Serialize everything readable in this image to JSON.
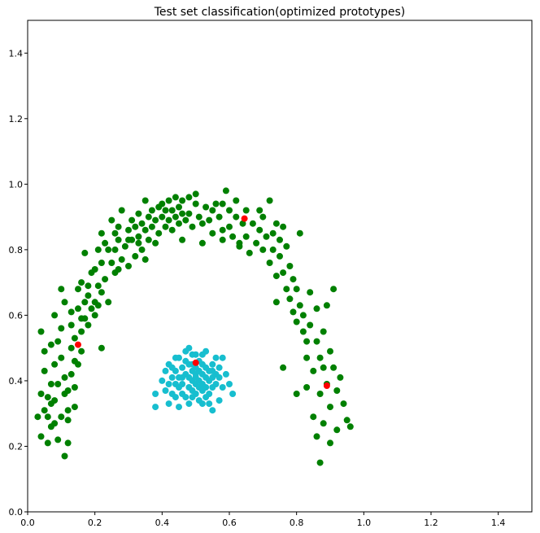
{
  "chart_data": {
    "type": "scatter",
    "title": "Test set classification(optimized prototypes)",
    "xlabel": "",
    "ylabel": "",
    "xlim": [
      0,
      1.5
    ],
    "ylim": [
      0,
      1.5
    ],
    "x_ticks": [
      "0.0",
      "0.2",
      "0.4",
      "0.6",
      "0.8",
      "1.0",
      "1.2",
      "1.4"
    ],
    "y_ticks": [
      "0.0",
      "0.2",
      "0.4",
      "0.6",
      "0.8",
      "1.0",
      "1.2",
      "1.4"
    ],
    "grid": false,
    "colors": {
      "green": "#008000",
      "cyan": "#17becf",
      "red": "#ff0000"
    },
    "series": [
      {
        "color": "#008000",
        "points": [
          [
            0.03,
            0.29
          ],
          [
            0.04,
            0.55
          ],
          [
            0.04,
            0.36
          ],
          [
            0.04,
            0.23
          ],
          [
            0.05,
            0.31
          ],
          [
            0.05,
            0.49
          ],
          [
            0.05,
            0.43
          ],
          [
            0.06,
            0.21
          ],
          [
            0.06,
            0.29
          ],
          [
            0.06,
            0.35
          ],
          [
            0.07,
            0.26
          ],
          [
            0.07,
            0.33
          ],
          [
            0.07,
            0.39
          ],
          [
            0.07,
            0.51
          ],
          [
            0.08,
            0.6
          ],
          [
            0.08,
            0.45
          ],
          [
            0.08,
            0.34
          ],
          [
            0.08,
            0.27
          ],
          [
            0.09,
            0.22
          ],
          [
            0.09,
            0.52
          ],
          [
            0.1,
            0.56
          ],
          [
            0.1,
            0.47
          ],
          [
            0.1,
            0.29
          ],
          [
            0.11,
            0.64
          ],
          [
            0.11,
            0.41
          ],
          [
            0.11,
            0.36
          ],
          [
            0.11,
            0.17
          ],
          [
            0.12,
            0.37
          ],
          [
            0.12,
            0.28
          ],
          [
            0.12,
            0.21
          ],
          [
            0.13,
            0.61
          ],
          [
            0.13,
            0.57
          ],
          [
            0.13,
            0.5
          ],
          [
            0.13,
            0.42
          ],
          [
            0.14,
            0.53
          ],
          [
            0.14,
            0.38
          ],
          [
            0.14,
            0.32
          ],
          [
            0.15,
            0.68
          ],
          [
            0.15,
            0.62
          ],
          [
            0.15,
            0.45
          ],
          [
            0.16,
            0.7
          ],
          [
            0.16,
            0.59
          ],
          [
            0.16,
            0.55
          ],
          [
            0.16,
            0.49
          ],
          [
            0.17,
            0.64
          ],
          [
            0.17,
            0.79
          ],
          [
            0.18,
            0.69
          ],
          [
            0.18,
            0.66
          ],
          [
            0.19,
            0.62
          ],
          [
            0.19,
            0.73
          ],
          [
            0.2,
            0.74
          ],
          [
            0.2,
            0.64
          ],
          [
            0.21,
            0.8
          ],
          [
            0.21,
            0.69
          ],
          [
            0.21,
            0.63
          ],
          [
            0.22,
            0.5
          ],
          [
            0.22,
            0.76
          ],
          [
            0.22,
            0.85
          ],
          [
            0.23,
            0.71
          ],
          [
            0.23,
            0.82
          ],
          [
            0.24,
            0.64
          ],
          [
            0.25,
            0.76
          ],
          [
            0.25,
            0.89
          ],
          [
            0.26,
            0.8
          ],
          [
            0.26,
            0.73
          ],
          [
            0.27,
            0.87
          ],
          [
            0.27,
            0.83
          ],
          [
            0.28,
            0.77
          ],
          [
            0.28,
            0.92
          ],
          [
            0.29,
            0.81
          ],
          [
            0.3,
            0.86
          ],
          [
            0.3,
            0.75
          ],
          [
            0.31,
            0.89
          ],
          [
            0.31,
            0.83
          ],
          [
            0.32,
            0.87
          ],
          [
            0.32,
            0.78
          ],
          [
            0.33,
            0.91
          ],
          [
            0.33,
            0.84
          ],
          [
            0.34,
            0.88
          ],
          [
            0.34,
            0.8
          ],
          [
            0.35,
            0.95
          ],
          [
            0.35,
            0.86
          ],
          [
            0.36,
            0.9
          ],
          [
            0.36,
            0.83
          ],
          [
            0.37,
            0.92
          ],
          [
            0.37,
            0.87
          ],
          [
            0.38,
            0.89
          ],
          [
            0.38,
            0.82
          ],
          [
            0.39,
            0.93
          ],
          [
            0.39,
            0.85
          ],
          [
            0.4,
            0.9
          ],
          [
            0.4,
            0.94
          ],
          [
            0.41,
            0.87
          ],
          [
            0.41,
            0.92
          ],
          [
            0.42,
            0.95
          ],
          [
            0.42,
            0.89
          ],
          [
            0.43,
            0.92
          ],
          [
            0.43,
            0.86
          ],
          [
            0.44,
            0.96
          ],
          [
            0.44,
            0.9
          ],
          [
            0.45,
            0.93
          ],
          [
            0.45,
            0.88
          ],
          [
            0.46,
            0.91
          ],
          [
            0.46,
            0.95
          ],
          [
            0.47,
            0.89
          ],
          [
            0.48,
            0.96
          ],
          [
            0.48,
            0.91
          ],
          [
            0.49,
            0.87
          ],
          [
            0.5,
            0.94
          ],
          [
            0.5,
            0.97
          ],
          [
            0.51,
            0.9
          ],
          [
            0.52,
            0.88
          ],
          [
            0.52,
            0.82
          ],
          [
            0.53,
            0.93
          ],
          [
            0.54,
            0.89
          ],
          [
            0.55,
            0.92
          ],
          [
            0.55,
            0.85
          ],
          [
            0.56,
            0.94
          ],
          [
            0.57,
            0.9
          ],
          [
            0.58,
            0.83
          ],
          [
            0.58,
            0.94
          ],
          [
            0.59,
            0.98
          ],
          [
            0.6,
            0.92
          ],
          [
            0.6,
            0.87
          ],
          [
            0.61,
            0.84
          ],
          [
            0.62,
            0.95
          ],
          [
            0.62,
            0.9
          ],
          [
            0.63,
            0.81
          ],
          [
            0.64,
            0.88
          ],
          [
            0.65,
            0.92
          ],
          [
            0.65,
            0.84
          ],
          [
            0.66,
            0.79
          ],
          [
            0.67,
            0.88
          ],
          [
            0.68,
            0.82
          ],
          [
            0.69,
            0.92
          ],
          [
            0.69,
            0.86
          ],
          [
            0.7,
            0.8
          ],
          [
            0.7,
            0.9
          ],
          [
            0.71,
            0.84
          ],
          [
            0.72,
            0.76
          ],
          [
            0.72,
            0.95
          ],
          [
            0.73,
            0.85
          ],
          [
            0.73,
            0.8
          ],
          [
            0.74,
            0.88
          ],
          [
            0.74,
            0.72
          ],
          [
            0.75,
            0.83
          ],
          [
            0.75,
            0.78
          ],
          [
            0.76,
            0.87
          ],
          [
            0.76,
            0.73
          ],
          [
            0.77,
            0.81
          ],
          [
            0.77,
            0.68
          ],
          [
            0.78,
            0.75
          ],
          [
            0.78,
            0.65
          ],
          [
            0.79,
            0.71
          ],
          [
            0.79,
            0.61
          ],
          [
            0.8,
            0.68
          ],
          [
            0.8,
            0.58
          ],
          [
            0.81,
            0.85
          ],
          [
            0.81,
            0.63
          ],
          [
            0.82,
            0.55
          ],
          [
            0.82,
            0.6
          ],
          [
            0.83,
            0.52
          ],
          [
            0.83,
            0.47
          ],
          [
            0.83,
            0.38
          ],
          [
            0.84,
            0.67
          ],
          [
            0.84,
            0.57
          ],
          [
            0.85,
            0.43
          ],
          [
            0.85,
            0.29
          ],
          [
            0.86,
            0.62
          ],
          [
            0.86,
            0.52
          ],
          [
            0.86,
            0.23
          ],
          [
            0.87,
            0.47
          ],
          [
            0.87,
            0.36
          ],
          [
            0.87,
            0.15
          ],
          [
            0.88,
            0.55
          ],
          [
            0.88,
            0.44
          ],
          [
            0.88,
            0.27
          ],
          [
            0.89,
            0.63
          ],
          [
            0.89,
            0.39
          ],
          [
            0.9,
            0.49
          ],
          [
            0.9,
            0.21
          ],
          [
            0.9,
            0.32
          ],
          [
            0.91,
            0.44
          ],
          [
            0.91,
            0.68
          ],
          [
            0.92,
            0.37
          ],
          [
            0.92,
            0.25
          ],
          [
            0.93,
            0.41
          ],
          [
            0.94,
            0.33
          ],
          [
            0.95,
            0.28
          ],
          [
            0.96,
            0.26
          ],
          [
            0.74,
            0.64
          ],
          [
            0.76,
            0.44
          ],
          [
            0.8,
            0.36
          ],
          [
            0.63,
            0.82
          ],
          [
            0.58,
            0.86
          ],
          [
            0.46,
            0.83
          ],
          [
            0.35,
            0.77
          ],
          [
            0.3,
            0.83
          ],
          [
            0.26,
            0.85
          ],
          [
            0.24,
            0.8
          ],
          [
            0.2,
            0.6
          ],
          [
            0.17,
            0.59
          ],
          [
            0.12,
            0.31
          ],
          [
            0.1,
            0.68
          ],
          [
            0.09,
            0.39
          ],
          [
            0.14,
            0.46
          ],
          [
            0.18,
            0.57
          ],
          [
            0.22,
            0.67
          ],
          [
            0.27,
            0.74
          ],
          [
            0.33,
            0.82
          ]
        ]
      },
      {
        "color": "#17becf",
        "points": [
          [
            0.38,
            0.32
          ],
          [
            0.38,
            0.36
          ],
          [
            0.4,
            0.4
          ],
          [
            0.41,
            0.37
          ],
          [
            0.41,
            0.43
          ],
          [
            0.42,
            0.33
          ],
          [
            0.42,
            0.39
          ],
          [
            0.42,
            0.45
          ],
          [
            0.43,
            0.36
          ],
          [
            0.43,
            0.41
          ],
          [
            0.44,
            0.35
          ],
          [
            0.44,
            0.43
          ],
          [
            0.44,
            0.47
          ],
          [
            0.45,
            0.38
          ],
          [
            0.45,
            0.32
          ],
          [
            0.45,
            0.41
          ],
          [
            0.46,
            0.36
          ],
          [
            0.46,
            0.44
          ],
          [
            0.46,
            0.39
          ],
          [
            0.47,
            0.42
          ],
          [
            0.47,
            0.35
          ],
          [
            0.47,
            0.46
          ],
          [
            0.48,
            0.38
          ],
          [
            0.48,
            0.41
          ],
          [
            0.48,
            0.33
          ],
          [
            0.48,
            0.5
          ],
          [
            0.49,
            0.37
          ],
          [
            0.49,
            0.43
          ],
          [
            0.49,
            0.4
          ],
          [
            0.49,
            0.45
          ],
          [
            0.5,
            0.39
          ],
          [
            0.5,
            0.42
          ],
          [
            0.5,
            0.36
          ],
          [
            0.5,
            0.48
          ],
          [
            0.5,
            0.41
          ],
          [
            0.51,
            0.38
          ],
          [
            0.51,
            0.43
          ],
          [
            0.51,
            0.4
          ],
          [
            0.51,
            0.34
          ],
          [
            0.52,
            0.42
          ],
          [
            0.52,
            0.39
          ],
          [
            0.52,
            0.45
          ],
          [
            0.52,
            0.37
          ],
          [
            0.53,
            0.41
          ],
          [
            0.53,
            0.44
          ],
          [
            0.53,
            0.38
          ],
          [
            0.53,
            0.49
          ],
          [
            0.54,
            0.4
          ],
          [
            0.54,
            0.43
          ],
          [
            0.54,
            0.36
          ],
          [
            0.55,
            0.41
          ],
          [
            0.55,
            0.38
          ],
          [
            0.55,
            0.45
          ],
          [
            0.55,
            0.31
          ],
          [
            0.56,
            0.42
          ],
          [
            0.56,
            0.39
          ],
          [
            0.56,
            0.47
          ],
          [
            0.57,
            0.41
          ],
          [
            0.57,
            0.44
          ],
          [
            0.58,
            0.38
          ],
          [
            0.58,
            0.47
          ],
          [
            0.59,
            0.42
          ],
          [
            0.6,
            0.39
          ],
          [
            0.61,
            0.36
          ],
          [
            0.57,
            0.34
          ],
          [
            0.45,
            0.47
          ],
          [
            0.47,
            0.49
          ],
          [
            0.52,
            0.33
          ],
          [
            0.43,
            0.44
          ],
          [
            0.49,
            0.35
          ],
          [
            0.51,
            0.46
          ],
          [
            0.54,
            0.33
          ],
          [
            0.48,
            0.45
          ],
          [
            0.5,
            0.44
          ],
          [
            0.53,
            0.35
          ],
          [
            0.46,
            0.41
          ],
          [
            0.55,
            0.43
          ],
          [
            0.44,
            0.39
          ],
          [
            0.52,
            0.48
          ],
          [
            0.49,
            0.48
          ]
        ]
      },
      {
        "color": "#ff0000",
        "points": [
          [
            0.15,
            0.51
          ],
          [
            0.5,
            0.455
          ],
          [
            0.645,
            0.895
          ],
          [
            0.89,
            0.385
          ]
        ]
      }
    ]
  }
}
